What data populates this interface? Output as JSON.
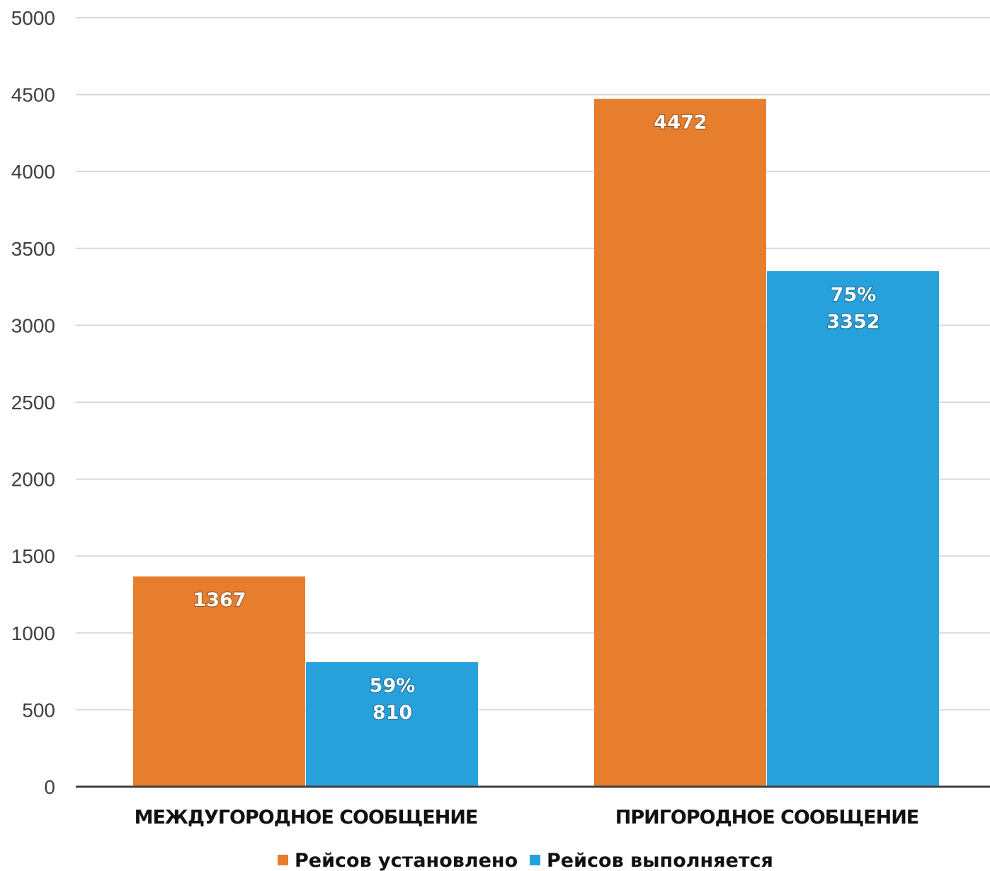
{
  "chart_data": {
    "type": "bar",
    "categories": [
      "МЕЖДУГОРОДНОЕ СООБЩЕНИЕ",
      "ПРИГОРОДНОЕ СООБЩЕНИЕ"
    ],
    "series": [
      {
        "name": "Рейсов установлено",
        "values": [
          1367,
          4472
        ],
        "color": "#E67E2E",
        "labels": [
          [
            "1367"
          ],
          [
            "4472"
          ]
        ]
      },
      {
        "name": "Рейсов выполняется",
        "values": [
          810,
          3352
        ],
        "color": "#27A1DB",
        "labels": [
          [
            "59%",
            "810"
          ],
          [
            "75%",
            "3352"
          ]
        ]
      }
    ],
    "ylim": [
      0,
      5000
    ],
    "yticks": [
      "0",
      "500",
      "1000",
      "1500",
      "2000",
      "2500",
      "3000",
      "3500",
      "4000",
      "4500",
      "5000"
    ],
    "grid": true,
    "legend_position": "bottom",
    "title": "",
    "xlabel": "",
    "ylabel": ""
  }
}
